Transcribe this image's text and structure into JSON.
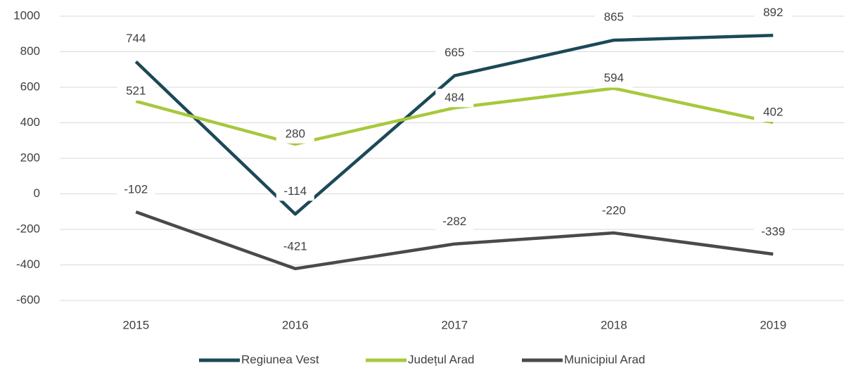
{
  "chart_data": {
    "type": "line",
    "categories": [
      "2015",
      "2016",
      "2017",
      "2018",
      "2019"
    ],
    "series": [
      {
        "name": "Regiunea Vest",
        "color": "#1b4957",
        "values": [
          744,
          -114,
          665,
          865,
          892
        ]
      },
      {
        "name": "Județul Arad",
        "color": "#a6c93b",
        "values": [
          521,
          280,
          484,
          594,
          402
        ]
      },
      {
        "name": "Municipiul Arad",
        "color": "#4a4a4a",
        "values": [
          -102,
          -421,
          -282,
          -220,
          -339
        ]
      }
    ],
    "ylim": [
      -600,
      1000
    ],
    "yticks": [
      -600,
      -400,
      -200,
      0,
      200,
      400,
      600,
      800,
      1000
    ],
    "grid": true,
    "legend": "bottom"
  }
}
